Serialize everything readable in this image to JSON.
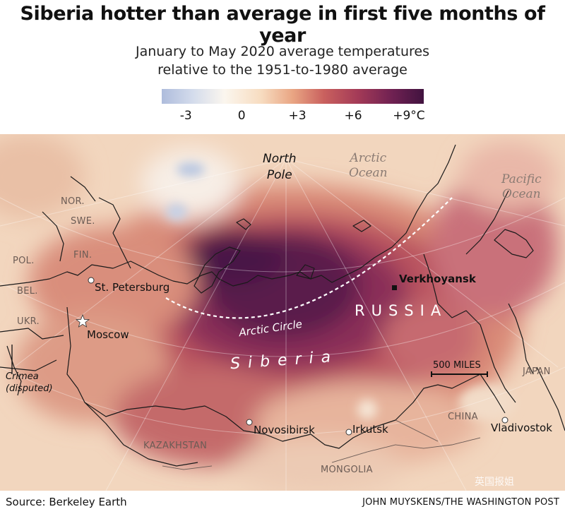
{
  "title": "Siberia hotter than average in first five months of year",
  "subtitle_line1": "January to May 2020 average temperatures",
  "subtitle_line2": "relative to the 1951-to-1980 average",
  "legend": {
    "ticks": [
      "-3",
      "0",
      "+3",
      "+6",
      "+9°C"
    ],
    "tick_values": [
      -3,
      0,
      3,
      6,
      9
    ],
    "range": [
      -4.3,
      9.8
    ],
    "colors": [
      "#aebcdc",
      "#fbf6ee",
      "#e9a583",
      "#a33a57",
      "#41133f"
    ]
  },
  "map": {
    "oceans": [
      {
        "line1": "Arctic",
        "line2": "Ocean"
      },
      {
        "line1": "Pacific",
        "line2": "Ocean"
      }
    ],
    "north_pole": {
      "line1": "North",
      "line2": "Pole"
    },
    "countries": {
      "nor": "NOR.",
      "swe": "SWE.",
      "fin": "FIN.",
      "pol": "POL.",
      "bel": "BEL.",
      "ukr": "UKR.",
      "kazakhstan": "KAZAKHSTAN",
      "mongolia": "MONGOLIA",
      "china": "CHINA",
      "japan": "JAPAN"
    },
    "cities": {
      "st_petersburg": "St. Petersburg",
      "moscow": "Moscow",
      "novosibirsk": "Novosibirsk",
      "irkutsk": "Irkutsk",
      "vladivostok": "Vladivostok",
      "verkhoyansk": "Verkhoyansk"
    },
    "crimea": {
      "line1": "Crimea",
      "line2": "(disputed)"
    },
    "region_russia": "RUSSIA",
    "region_siberia": "Siberia",
    "arctic_circle": "Arctic Circle",
    "scale_label": "500 MILES"
  },
  "source": "Source: Berkeley Earth",
  "credit": "JOHN MUYSKENS/THE WASHINGTON POST",
  "watermark": "英国报姐"
}
